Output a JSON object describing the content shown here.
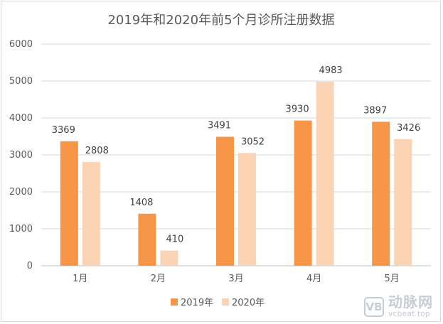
{
  "chart_data": {
    "type": "bar",
    "title": "2019年和2020年前5个月诊所注册数据",
    "categories": [
      "1月",
      "2月",
      "3月",
      "4月",
      "5月"
    ],
    "series": [
      {
        "name": "2019年",
        "color": "#f79646",
        "values": [
          3369,
          1408,
          3491,
          3930,
          3897
        ]
      },
      {
        "name": "2020年",
        "color": "#fad4b4",
        "values": [
          2808,
          410,
          3052,
          4983,
          3426
        ]
      }
    ],
    "yticks": [
      0,
      1000,
      2000,
      3000,
      4000,
      5000,
      6000
    ],
    "ylim": [
      0,
      6000
    ],
    "grid": true,
    "legend": "bottom"
  },
  "watermark": {
    "mark": "VB",
    "name": "动脉网",
    "url": "vcbeat.top"
  }
}
